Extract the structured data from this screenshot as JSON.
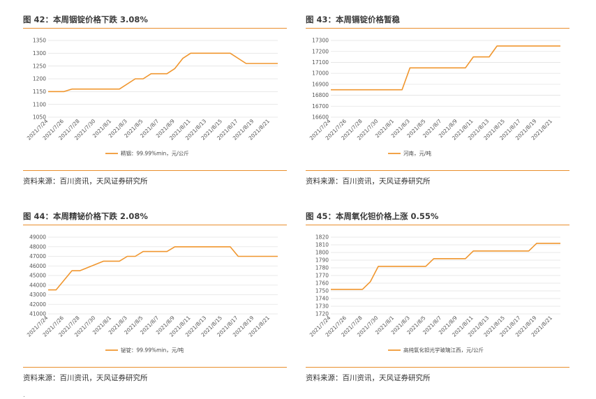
{
  "theme": {
    "line_color": "#F0962E",
    "rule_color": "#E98E2C",
    "grid_color": "#E3E3E3"
  },
  "footer_mark": ".",
  "panels": [
    {
      "title": "图 42：本周铟锭价格下跌 3.08%",
      "source": "资料来源：百川资讯，天风证券研究所",
      "chart_data": {
        "type": "line",
        "title": "",
        "xlabel": "",
        "ylabel": "",
        "ylim": [
          1050,
          1350
        ],
        "yticks": [
          "1050",
          "1100",
          "1150",
          "1200",
          "1250",
          "1300",
          "1350"
        ],
        "xticks": [
          "2021/7/24",
          "2021/7/26",
          "2021/7/28",
          "2021/7/30",
          "2021/8/1",
          "2021/8/3",
          "2021/8/5",
          "2021/8/7",
          "2021/8/9",
          "2021/8/11",
          "2021/8/13",
          "2021/8/15",
          "2021/8/17",
          "2021/8/19",
          "2021/8/21"
        ],
        "grid": true,
        "legend": "bottom",
        "series": [
          {
            "name": "精铟：99.99%min，元/公斤",
            "x": [
              "2021/7/24",
              "2021/7/26",
              "2021/7/27",
              "2021/8/2",
              "2021/8/4",
              "2021/8/5",
              "2021/8/6",
              "2021/8/8",
              "2021/8/9",
              "2021/8/10",
              "2021/8/11",
              "2021/8/12",
              "2021/8/16",
              "2021/8/18",
              "2021/8/22"
            ],
            "values": [
              1150,
              1150,
              1160,
              1160,
              1200,
              1200,
              1220,
              1220,
              1240,
              1280,
              1300,
              1300,
              1300,
              1260,
              1260
            ]
          }
        ]
      }
    },
    {
      "title": "图 43：本周镉锭价格暂稳",
      "source": "资料来源：百川资讯，天风证券研究所",
      "chart_data": {
        "type": "line",
        "title": "",
        "xlabel": "",
        "ylabel": "",
        "ylim": [
          16600,
          17300
        ],
        "yticks": [
          "16600",
          "16700",
          "16800",
          "16900",
          "17000",
          "17100",
          "17200",
          "17300"
        ],
        "xticks": [
          "2021/7/24",
          "2021/7/26",
          "2021/7/28",
          "2021/7/30",
          "2021/8/1",
          "2021/8/3",
          "2021/8/5",
          "2021/8/7",
          "2021/8/9",
          "2021/8/11",
          "2021/8/13",
          "2021/8/15",
          "2021/8/17",
          "2021/8/19",
          "2021/8/21"
        ],
        "grid": true,
        "legend": "bottom",
        "series": [
          {
            "name": "河南，元/吨",
            "x": [
              "2021/7/24",
              "2021/8/2",
              "2021/8/3",
              "2021/8/10",
              "2021/8/11",
              "2021/8/13",
              "2021/8/14",
              "2021/8/22"
            ],
            "values": [
              16850,
              16850,
              17050,
              17050,
              17150,
              17150,
              17250,
              17250
            ]
          }
        ]
      }
    },
    {
      "title": "图 44：本周精铋价格下跌 2.08%",
      "source": "资料来源：百川资讯，天风证券研究所",
      "chart_data": {
        "type": "line",
        "title": "",
        "xlabel": "",
        "ylabel": "",
        "ylim": [
          41000,
          49000
        ],
        "yticks": [
          "41000",
          "42000",
          "43000",
          "44000",
          "45000",
          "46000",
          "47000",
          "48000",
          "49000"
        ],
        "xticks": [
          "2021/7/24",
          "2021/7/26",
          "2021/7/28",
          "2021/7/30",
          "2021/8/1",
          "2021/8/3",
          "2021/8/5",
          "2021/8/7",
          "2021/8/9",
          "2021/8/11",
          "2021/8/13",
          "2021/8/15",
          "2021/8/17",
          "2021/8/19",
          "2021/8/21"
        ],
        "grid": true,
        "legend": "bottom",
        "series": [
          {
            "name": "铋锭：99.99%min，元/吨",
            "x": [
              "2021/7/24",
              "2021/7/25",
              "2021/7/27",
              "2021/7/28",
              "2021/7/31",
              "2021/8/2",
              "2021/8/3",
              "2021/8/4",
              "2021/8/5",
              "2021/8/8",
              "2021/8/9",
              "2021/8/16",
              "2021/8/17",
              "2021/8/22"
            ],
            "values": [
              43500,
              43500,
              45500,
              45500,
              46500,
              46500,
              47000,
              47000,
              47500,
              47500,
              48000,
              48000,
              47000,
              47000
            ]
          }
        ]
      }
    },
    {
      "title": "图 45：本周氧化钽价格上涨 0.55%",
      "source": "资料来源：百川资讯，天风证券研究所",
      "chart_data": {
        "type": "line",
        "title": "",
        "xlabel": "",
        "ylabel": "",
        "ylim": [
          1720,
          1820
        ],
        "yticks": [
          "1720",
          "1730",
          "1740",
          "1750",
          "1760",
          "1770",
          "1780",
          "1790",
          "1800",
          "1810",
          "1820"
        ],
        "xticks": [
          "2021/7/24",
          "2021/7/26",
          "2021/7/28",
          "2021/7/30",
          "2021/8/1",
          "2021/8/3",
          "2021/8/5",
          "2021/8/7",
          "2021/8/9",
          "2021/8/11",
          "2021/8/13",
          "2021/8/15",
          "2021/8/17",
          "2021/8/19",
          "2021/8/21"
        ],
        "grid": true,
        "legend": "bottom",
        "series": [
          {
            "name": "高纯氧化钽光学玻璃江西，元/公斤",
            "x": [
              "2021/7/24",
              "2021/7/28",
              "2021/7/29",
              "2021/7/30",
              "2021/8/5",
              "2021/8/6",
              "2021/8/10",
              "2021/8/11",
              "2021/8/18",
              "2021/8/19",
              "2021/8/22"
            ],
            "values": [
              1752,
              1752,
              1762,
              1782,
              1782,
              1792,
              1792,
              1802,
              1802,
              1812,
              1812
            ]
          }
        ]
      }
    }
  ]
}
